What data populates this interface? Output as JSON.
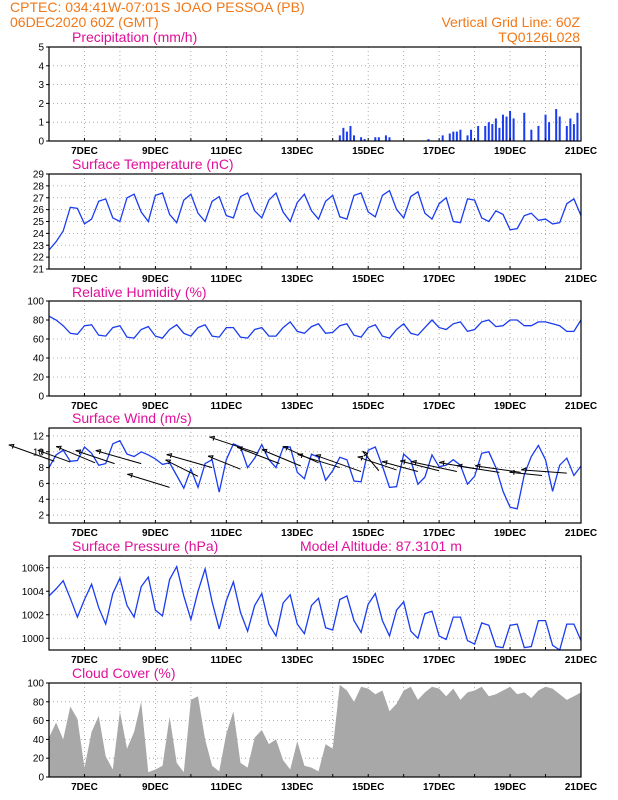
{
  "header": {
    "line1": "CPTEC:   034:41W-07:01S   JOAO PESSOA (PB)",
    "line2": "06DEC2020 60Z (GMT)",
    "right1": "Vertical Grid Line: 60Z",
    "right2": "TQ0126L028"
  },
  "colors": {
    "header": "#f07818",
    "title": "#e0109a",
    "series": "#1a3cf0",
    "cloud": "#a8a8a8",
    "grid": "#9a9a9a"
  },
  "x_axis": {
    "start_day": 6,
    "end_day": 21,
    "tick_days": [
      7,
      9,
      11,
      13,
      15,
      17,
      19,
      21
    ],
    "tick_labels": [
      "7DEC",
      "9DEC",
      "11DEC",
      "13DEC",
      "15DEC",
      "17DEC",
      "19DEC",
      "21DEC"
    ],
    "minor_every_days": 1
  },
  "chart_data": [
    {
      "id": "precip",
      "type": "bar",
      "title": "Precipitation (mm/h)",
      "ylim": [
        0,
        5
      ],
      "yticks": [
        0,
        1,
        2,
        3,
        4,
        5
      ],
      "x_days": [
        14.2,
        14.3,
        14.4,
        14.5,
        14.6,
        14.8,
        14.9,
        15.2,
        15.3,
        15.5,
        15.6,
        16.7,
        17.1,
        17.3,
        17.4,
        17.5,
        17.6,
        17.8,
        17.9,
        18.1,
        18.3,
        18.4,
        18.5,
        18.6,
        18.7,
        18.8,
        18.9,
        19.0,
        19.1,
        19.4,
        19.6,
        19.8,
        20.0,
        20.1,
        20.3,
        20.4,
        20.6,
        20.7,
        20.8,
        20.9
      ],
      "values": [
        0.3,
        0.7,
        0.5,
        0.8,
        0.3,
        0.2,
        0.1,
        0.2,
        0.2,
        0.3,
        0.2,
        0.1,
        0.3,
        0.4,
        0.5,
        0.5,
        0.6,
        0.3,
        0.6,
        0.8,
        0.8,
        1.0,
        0.9,
        1.2,
        0.7,
        1.4,
        1.3,
        1.6,
        1.2,
        1.5,
        0.6,
        0.8,
        1.4,
        1.0,
        1.7,
        1.3,
        0.8,
        1.2,
        0.9,
        1.5
      ]
    },
    {
      "id": "temp",
      "type": "line",
      "title": "Surface Temperature (nC)",
      "ylim": [
        21,
        29
      ],
      "yticks": [
        21,
        22,
        23,
        24,
        25,
        26,
        27,
        28,
        29
      ],
      "x_days": [
        6.0,
        6.2,
        6.4,
        6.6,
        6.8,
        7.0,
        7.2,
        7.4,
        7.6,
        7.8,
        8.0,
        8.2,
        8.4,
        8.6,
        8.8,
        9.0,
        9.2,
        9.4,
        9.6,
        9.8,
        10.0,
        10.2,
        10.4,
        10.6,
        10.8,
        11.0,
        11.2,
        11.4,
        11.6,
        11.8,
        12.0,
        12.2,
        12.4,
        12.6,
        12.8,
        13.0,
        13.2,
        13.4,
        13.6,
        13.8,
        14.0,
        14.2,
        14.4,
        14.6,
        14.8,
        15.0,
        15.2,
        15.4,
        15.6,
        15.8,
        16.0,
        16.2,
        16.4,
        16.6,
        16.8,
        17.0,
        17.2,
        17.4,
        17.6,
        17.8,
        18.0,
        18.2,
        18.4,
        18.6,
        18.8,
        19.0,
        19.2,
        19.4,
        19.6,
        19.8,
        20.0,
        20.2,
        20.4,
        20.6,
        20.8,
        21.0
      ],
      "values": [
        22.6,
        23.3,
        24.2,
        26.2,
        26.1,
        24.8,
        25.2,
        26.7,
        26.9,
        25.3,
        25.0,
        27.0,
        27.3,
        25.8,
        25.0,
        27.2,
        27.4,
        25.6,
        24.9,
        26.8,
        27.3,
        25.7,
        25.0,
        26.7,
        27.1,
        25.5,
        25.3,
        27.1,
        27.4,
        25.9,
        25.3,
        26.8,
        27.4,
        25.8,
        25.0,
        26.6,
        27.3,
        25.9,
        25.2,
        26.7,
        27.2,
        25.4,
        25.2,
        27.2,
        27.4,
        25.8,
        25.4,
        27.2,
        27.6,
        26.0,
        25.3,
        27.1,
        27.5,
        25.7,
        25.2,
        26.5,
        27.0,
        25.0,
        24.9,
        26.9,
        26.8,
        25.3,
        25.0,
        25.9,
        25.6,
        24.3,
        24.4,
        25.5,
        25.7,
        25.1,
        25.2,
        24.8,
        24.9,
        26.5,
        26.9,
        25.5
      ]
    },
    {
      "id": "humidity",
      "type": "line",
      "title": "Relative Humidity (%)",
      "ylim": [
        0,
        100
      ],
      "yticks": [
        0,
        20,
        40,
        60,
        80,
        100
      ],
      "x_days": [
        6.0,
        6.2,
        6.4,
        6.6,
        6.8,
        7.0,
        7.2,
        7.4,
        7.6,
        7.8,
        8.0,
        8.2,
        8.4,
        8.6,
        8.8,
        9.0,
        9.2,
        9.4,
        9.6,
        9.8,
        10.0,
        10.2,
        10.4,
        10.6,
        10.8,
        11.0,
        11.2,
        11.4,
        11.6,
        11.8,
        12.0,
        12.2,
        12.4,
        12.6,
        12.8,
        13.0,
        13.2,
        13.4,
        13.6,
        13.8,
        14.0,
        14.2,
        14.4,
        14.6,
        14.8,
        15.0,
        15.2,
        15.4,
        15.6,
        15.8,
        16.0,
        16.2,
        16.4,
        16.6,
        16.8,
        17.0,
        17.2,
        17.4,
        17.6,
        17.8,
        18.0,
        18.2,
        18.4,
        18.6,
        18.8,
        19.0,
        19.2,
        19.4,
        19.6,
        19.8,
        20.0,
        20.2,
        20.4,
        20.6,
        20.8,
        21.0
      ],
      "values": [
        84,
        80,
        74,
        66,
        65,
        74,
        75,
        64,
        63,
        72,
        74,
        62,
        61,
        70,
        73,
        63,
        61,
        70,
        75,
        66,
        63,
        72,
        75,
        63,
        62,
        72,
        72,
        62,
        61,
        70,
        72,
        63,
        63,
        72,
        78,
        68,
        66,
        73,
        76,
        66,
        67,
        74,
        76,
        64,
        62,
        72,
        75,
        63,
        61,
        70,
        76,
        66,
        64,
        72,
        80,
        72,
        70,
        76,
        78,
        68,
        70,
        78,
        80,
        73,
        74,
        80,
        80,
        74,
        74,
        78,
        78,
        76,
        74,
        68,
        68,
        80
      ]
    },
    {
      "id": "wind",
      "type": "line",
      "title": "Surface Wind (m/s)",
      "ylim": [
        1,
        13
      ],
      "yticks": [
        2,
        4,
        6,
        8,
        10,
        12
      ],
      "x_days": [
        6.0,
        6.2,
        6.4,
        6.6,
        6.8,
        7.0,
        7.2,
        7.4,
        7.6,
        7.8,
        8.0,
        8.2,
        8.4,
        8.6,
        8.8,
        9.0,
        9.2,
        9.4,
        9.6,
        9.8,
        10.0,
        10.2,
        10.4,
        10.6,
        10.8,
        11.0,
        11.2,
        11.4,
        11.6,
        11.8,
        12.0,
        12.2,
        12.4,
        12.6,
        12.8,
        13.0,
        13.2,
        13.4,
        13.6,
        13.8,
        14.0,
        14.2,
        14.4,
        14.6,
        14.8,
        15.0,
        15.2,
        15.4,
        15.6,
        15.8,
        16.0,
        16.2,
        16.4,
        16.6,
        16.8,
        17.0,
        17.2,
        17.4,
        17.6,
        17.8,
        18.0,
        18.2,
        18.4,
        18.6,
        18.8,
        19.0,
        19.2,
        19.4,
        19.6,
        19.8,
        20.0,
        20.2,
        20.4,
        20.6,
        20.8,
        21.0
      ],
      "values": [
        8.0,
        9.6,
        10.2,
        8.8,
        8.9,
        10.6,
        9.8,
        8.3,
        8.5,
        11.0,
        11.4,
        9.7,
        9.4,
        10.0,
        9.6,
        9.1,
        8.4,
        8.6,
        7.0,
        5.4,
        7.8,
        5.5,
        8.5,
        9.0,
        4.9,
        9.0,
        11.0,
        10.6,
        8.0,
        9.2,
        10.9,
        9.0,
        8.0,
        10.5,
        10.6,
        7.4,
        6.6,
        9.7,
        9.3,
        6.4,
        7.6,
        9.3,
        9.0,
        6.3,
        6.2,
        10.2,
        10.6,
        8.2,
        5.5,
        5.6,
        9.7,
        8.9,
        5.9,
        6.8,
        9.6,
        8.1,
        8.3,
        9.0,
        8.3,
        5.9,
        6.9,
        9.8,
        10.0,
        8.0,
        5.0,
        3.0,
        2.8,
        7.1,
        9.4,
        10.8,
        9.0,
        5.0,
        8.3,
        9.2,
        7.0,
        8.2
      ]
    },
    {
      "id": "pressure",
      "type": "line",
      "title": "Surface Pressure (hPa)",
      "annotation": "Model Altitude: 87.3101 m",
      "ylim": [
        999,
        1007
      ],
      "yticks": [
        1000,
        1002,
        1004,
        1006
      ],
      "x_days": [
        6.0,
        6.2,
        6.4,
        6.6,
        6.8,
        7.0,
        7.2,
        7.4,
        7.6,
        7.8,
        8.0,
        8.2,
        8.4,
        8.6,
        8.8,
        9.0,
        9.2,
        9.4,
        9.6,
        9.8,
        10.0,
        10.2,
        10.4,
        10.6,
        10.8,
        11.0,
        11.2,
        11.4,
        11.6,
        11.8,
        12.0,
        12.2,
        12.4,
        12.6,
        12.8,
        13.0,
        13.2,
        13.4,
        13.6,
        13.8,
        14.0,
        14.2,
        14.4,
        14.6,
        14.8,
        15.0,
        15.2,
        15.4,
        15.6,
        15.8,
        16.0,
        16.2,
        16.4,
        16.6,
        16.8,
        17.0,
        17.2,
        17.4,
        17.6,
        17.8,
        18.0,
        18.2,
        18.4,
        18.6,
        18.8,
        19.0,
        19.2,
        19.4,
        19.6,
        19.8,
        20.0,
        20.2,
        20.4,
        20.6,
        20.8,
        21.0
      ],
      "values": [
        1003.6,
        1004.2,
        1004.9,
        1003.4,
        1001.8,
        1003.3,
        1004.6,
        1002.6,
        1001.2,
        1003.8,
        1005.1,
        1002.8,
        1001.8,
        1004.4,
        1005.2,
        1002.4,
        1001.9,
        1005.0,
        1006.1,
        1003.6,
        1001.6,
        1004.0,
        1005.9,
        1003.1,
        1000.8,
        1003.2,
        1004.8,
        1002.2,
        1000.6,
        1002.8,
        1003.8,
        1001.2,
        1000.2,
        1003.0,
        1003.7,
        1001.2,
        1000.4,
        1002.8,
        1003.4,
        1000.9,
        1000.7,
        1003.3,
        1003.6,
        1001.5,
        1000.5,
        1002.9,
        1003.8,
        1001.5,
        1000.2,
        1002.4,
        1003.1,
        1000.6,
        1000.0,
        1002.1,
        1002.3,
        1000.2,
        999.9,
        1001.8,
        1001.8,
        999.8,
        999.5,
        1001.3,
        1001.1,
        999.3,
        999.2,
        1001.1,
        1001.2,
        999.2,
        999.3,
        1001.5,
        1001.5,
        999.4,
        999.0,
        1001.2,
        1001.2,
        999.8
      ]
    },
    {
      "id": "cloud",
      "type": "area",
      "title": "Cloud Cover (%)",
      "ylim": [
        0,
        100
      ],
      "yticks": [
        0,
        20,
        40,
        60,
        80,
        100
      ],
      "x_days": [
        6.0,
        6.2,
        6.4,
        6.6,
        6.8,
        7.0,
        7.2,
        7.4,
        7.6,
        7.8,
        8.0,
        8.2,
        8.4,
        8.6,
        8.8,
        9.0,
        9.2,
        9.4,
        9.6,
        9.8,
        10.0,
        10.2,
        10.4,
        10.6,
        10.8,
        11.0,
        11.2,
        11.4,
        11.6,
        11.8,
        12.0,
        12.2,
        12.4,
        12.6,
        12.8,
        13.0,
        13.2,
        13.4,
        13.6,
        13.8,
        14.0,
        14.2,
        14.4,
        14.6,
        14.8,
        15.0,
        15.2,
        15.4,
        15.6,
        15.8,
        16.0,
        16.2,
        16.4,
        16.6,
        16.8,
        17.0,
        17.2,
        17.4,
        17.6,
        17.8,
        18.0,
        18.2,
        18.4,
        18.6,
        18.8,
        19.0,
        19.2,
        19.4,
        19.6,
        19.8,
        20.0,
        20.2,
        20.4,
        20.6,
        20.8,
        21.0
      ],
      "values": [
        42,
        58,
        40,
        75,
        62,
        10,
        48,
        65,
        22,
        8,
        70,
        30,
        48,
        80,
        5,
        8,
        12,
        64,
        15,
        5,
        82,
        86,
        40,
        12,
        6,
        46,
        70,
        15,
        10,
        42,
        50,
        35,
        40,
        18,
        8,
        38,
        12,
        10,
        6,
        35,
        30,
        98,
        92,
        80,
        96,
        94,
        88,
        92,
        70,
        78,
        92,
        96,
        82,
        90,
        96,
        94,
        86,
        94,
        82,
        90,
        92,
        96,
        86,
        88,
        92,
        96,
        88,
        90,
        84,
        92,
        96,
        94,
        88,
        82,
        86,
        90
      ]
    }
  ],
  "wind_arrows": {
    "x_days": [
      6.15,
      6.6,
      7.3,
      7.85,
      8.6,
      9.4,
      10.2,
      10.6,
      11.4,
      11.9,
      12.5,
      13.1,
      13.6,
      14.2,
      14.8,
      15.3,
      15.8,
      16.4,
      17.0,
      17.5,
      18.1,
      18.7,
      19.3,
      19.9,
      20.6
    ],
    "u_ms": [
      -7.0,
      -5.0,
      -6.0,
      -6.0,
      -7.0,
      -6.5,
      -5.0,
      -7.0,
      -5.0,
      -7.5,
      -6.5,
      -6.0,
      -5.5,
      -6.5,
      -7.0,
      -2.5,
      -6.0,
      -5.5,
      -6.0,
      -7.0,
      -6.0,
      -6.5,
      -7.0,
      -5.0,
      -7.0
    ],
    "v_ms": [
      2.5,
      1.8,
      2.5,
      2.0,
      2.0,
      2.0,
      2.5,
      2.0,
      2.0,
      2.5,
      2.5,
      2.5,
      2.5,
      2.0,
      2.5,
      3.0,
      2.0,
      1.5,
      1.5,
      1.5,
      1.0,
      1.0,
      1.0,
      0.5,
      0.5
    ],
    "base_ms": [
      8.8,
      8.7,
      8.6,
      8.5,
      8.5,
      5.5,
      6.9,
      8.0,
      7.8,
      9.8,
      8.5,
      8.2,
      8.6,
      8.0,
      7.5,
      7.6,
      7.7,
      7.5,
      7.6,
      7.5,
      7.8,
      7.4,
      7.4,
      7.0,
      7.3
    ]
  }
}
